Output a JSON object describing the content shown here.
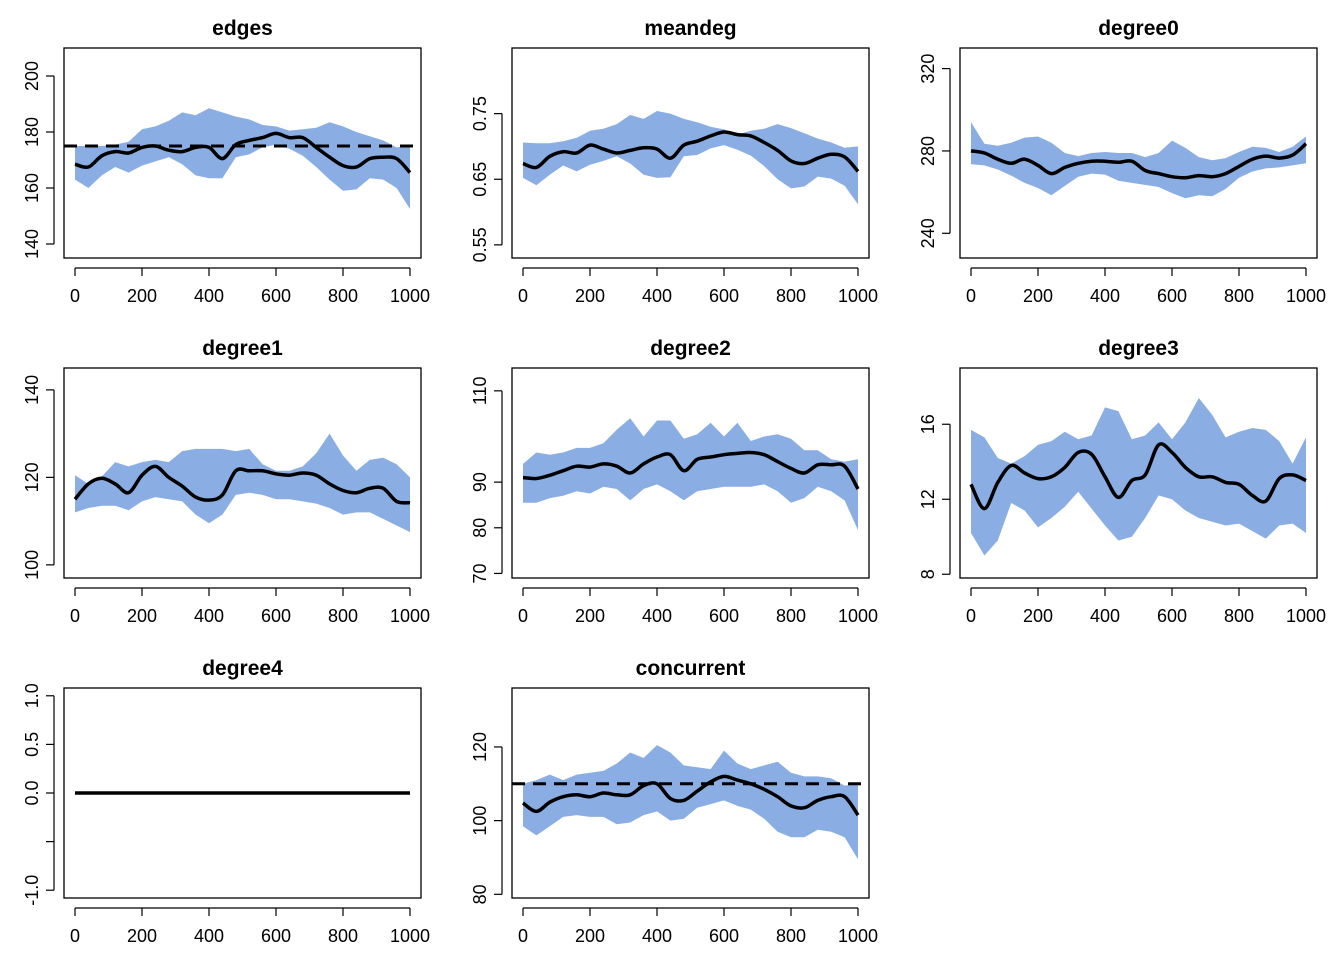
{
  "colors": {
    "band": "#8AAEE3",
    "line": "#000000",
    "frame": "#000000",
    "background": "#FFFFFF"
  },
  "chart_data": [
    {
      "type": "area",
      "title": "edges",
      "xlabel": "",
      "ylabel": "",
      "xlim": [
        0,
        1000
      ],
      "ylim": [
        135,
        210
      ],
      "xticks": [
        0,
        200,
        400,
        600,
        800,
        1000
      ],
      "yticks": [
        140,
        160,
        180,
        200
      ],
      "target": 175,
      "grid": false,
      "x": [
        0,
        40,
        80,
        120,
        160,
        200,
        240,
        280,
        320,
        360,
        400,
        440,
        480,
        520,
        560,
        600,
        640,
        680,
        720,
        760,
        800,
        840,
        880,
        920,
        960,
        1000
      ],
      "mean": [
        168.5,
        167.5,
        171.5,
        173,
        172.5,
        174.5,
        175,
        173.5,
        173,
        174.5,
        174.5,
        170.5,
        175.5,
        177,
        178,
        179.5,
        178,
        178,
        174.5,
        171,
        168,
        167.5,
        170.5,
        171,
        170.5,
        165.5
      ],
      "upper": [
        175,
        175,
        175,
        175.5,
        176.5,
        181,
        182,
        184,
        187,
        186,
        188.5,
        187,
        185.5,
        184.5,
        182.5,
        182,
        180.5,
        181,
        181.5,
        183.5,
        182,
        180,
        178.5,
        177,
        174.5,
        175
      ],
      "lower": [
        163,
        160,
        164.5,
        167.5,
        165.5,
        168,
        169.5,
        171,
        168.5,
        164.5,
        163.5,
        163.5,
        171,
        172,
        174.5,
        175.5,
        174,
        171.5,
        167.5,
        163,
        159,
        159.5,
        163.5,
        163,
        160,
        152.5
      ]
    },
    {
      "type": "area",
      "title": "meandeg",
      "xlabel": "",
      "ylabel": "",
      "xlim": [
        0,
        1000
      ],
      "ylim": [
        0.53,
        0.85
      ],
      "xticks": [
        0,
        200,
        400,
        600,
        800,
        1000
      ],
      "yticks": [
        0.55,
        0.65,
        0.75
      ],
      "ytick_labels": [
        "0.55",
        "0.65",
        "0.75"
      ],
      "grid": false,
      "x": [
        0,
        40,
        80,
        120,
        160,
        200,
        240,
        280,
        320,
        360,
        400,
        440,
        480,
        520,
        560,
        600,
        640,
        680,
        720,
        760,
        800,
        840,
        880,
        920,
        960,
        1000
      ],
      "mean": [
        0.674,
        0.668,
        0.685,
        0.692,
        0.69,
        0.702,
        0.696,
        0.69,
        0.694,
        0.698,
        0.696,
        0.682,
        0.702,
        0.708,
        0.716,
        0.722,
        0.718,
        0.716,
        0.706,
        0.694,
        0.678,
        0.674,
        0.682,
        0.688,
        0.684,
        0.662
      ],
      "upper": [
        0.706,
        0.705,
        0.705,
        0.708,
        0.713,
        0.724,
        0.727,
        0.734,
        0.748,
        0.742,
        0.754,
        0.75,
        0.742,
        0.737,
        0.73,
        0.726,
        0.718,
        0.724,
        0.727,
        0.734,
        0.728,
        0.72,
        0.712,
        0.706,
        0.698,
        0.7
      ],
      "lower": [
        0.652,
        0.641,
        0.657,
        0.671,
        0.662,
        0.672,
        0.678,
        0.685,
        0.674,
        0.657,
        0.652,
        0.653,
        0.685,
        0.687,
        0.697,
        0.702,
        0.695,
        0.686,
        0.67,
        0.65,
        0.636,
        0.639,
        0.654,
        0.651,
        0.64,
        0.612
      ]
    },
    {
      "type": "area",
      "title": "degree0",
      "xlabel": "",
      "ylabel": "",
      "xlim": [
        0,
        1000
      ],
      "ylim": [
        228,
        330
      ],
      "xticks": [
        0,
        200,
        400,
        600,
        800,
        1000
      ],
      "yticks": [
        240,
        280,
        320
      ],
      "grid": false,
      "x": [
        0,
        40,
        80,
        120,
        160,
        200,
        240,
        280,
        320,
        360,
        400,
        440,
        480,
        520,
        560,
        600,
        640,
        680,
        720,
        760,
        800,
        840,
        880,
        920,
        960,
        1000
      ],
      "mean": [
        280,
        279,
        276,
        274,
        276,
        273,
        269,
        272,
        274,
        275,
        275,
        274.5,
        275,
        270.5,
        269,
        267.5,
        267,
        268,
        267.5,
        269,
        272.5,
        276,
        277.5,
        276.5,
        278,
        283.5
      ],
      "upper": [
        294,
        283.5,
        282.5,
        284,
        286.5,
        287,
        284,
        279,
        277.5,
        279,
        279.5,
        279,
        279,
        277,
        279,
        285,
        281.5,
        277,
        275.5,
        276.5,
        279.5,
        282,
        281.5,
        279.5,
        282,
        287
      ],
      "lower": [
        273.5,
        273,
        271,
        268,
        264.5,
        262,
        258.5,
        263,
        267.5,
        269,
        268.5,
        265.5,
        264.5,
        263.5,
        262.5,
        259.5,
        257,
        258.5,
        258,
        261.5,
        267,
        270,
        271.5,
        272,
        273,
        274
      ]
    },
    {
      "type": "area",
      "title": "degree1",
      "xlabel": "",
      "ylabel": "",
      "xlim": [
        0,
        1000
      ],
      "ylim": [
        97,
        145
      ],
      "xticks": [
        0,
        200,
        400,
        600,
        800,
        1000
      ],
      "yticks": [
        100,
        120,
        140
      ],
      "grid": false,
      "x": [
        0,
        40,
        80,
        120,
        160,
        200,
        240,
        280,
        320,
        360,
        400,
        440,
        480,
        520,
        560,
        600,
        640,
        680,
        720,
        760,
        800,
        840,
        880,
        920,
        960,
        1000
      ],
      "mean": [
        115,
        118.5,
        119.8,
        118.5,
        116.5,
        120.5,
        122.5,
        120,
        118,
        115.5,
        114.8,
        116,
        121.5,
        121.5,
        121.5,
        120.8,
        120.5,
        121,
        120.5,
        118.5,
        117,
        116.5,
        117.5,
        117.5,
        114.5,
        114.2
      ],
      "upper": [
        120.5,
        118.5,
        120.2,
        123.5,
        122.5,
        123.5,
        124,
        123.5,
        126,
        126.5,
        126.5,
        126.5,
        126,
        126.5,
        123,
        121.5,
        121.5,
        122.5,
        125.5,
        130,
        125,
        121.5,
        124,
        124.5,
        123,
        120
      ],
      "lower": [
        112,
        113,
        113.5,
        113.5,
        112.5,
        114.5,
        115.5,
        115,
        114.5,
        111.5,
        109.5,
        111.5,
        116,
        116.5,
        116,
        115,
        115,
        114.5,
        114,
        113,
        111.5,
        112,
        112,
        110.5,
        109,
        107.5
      ]
    },
    {
      "type": "area",
      "title": "degree2",
      "xlabel": "",
      "ylabel": "",
      "xlim": [
        0,
        1000
      ],
      "ylim": [
        69,
        115
      ],
      "xticks": [
        0,
        200,
        400,
        600,
        800,
        1000
      ],
      "yticks": [
        70,
        80,
        90,
        110
      ],
      "grid": false,
      "x": [
        0,
        40,
        80,
        120,
        160,
        200,
        240,
        280,
        320,
        360,
        400,
        440,
        480,
        520,
        560,
        600,
        640,
        680,
        720,
        760,
        800,
        840,
        880,
        920,
        960,
        1000
      ],
      "mean": [
        91,
        90.8,
        91.5,
        92.5,
        93.5,
        93.3,
        94,
        93.5,
        92,
        94,
        95.5,
        96,
        92.5,
        95,
        95.5,
        96,
        96.3,
        96.5,
        96,
        94.5,
        93,
        92,
        93.8,
        93.8,
        93.5,
        88.5
      ],
      "upper": [
        94,
        96.5,
        96,
        96.5,
        97.5,
        97.5,
        98.5,
        101.5,
        104,
        100,
        103.5,
        103.5,
        99.5,
        100.5,
        103,
        100,
        103,
        99,
        100,
        100.5,
        99.5,
        97,
        97,
        95,
        94.5,
        95
      ],
      "lower": [
        85.5,
        85.5,
        86.5,
        87,
        88,
        87.5,
        89,
        88.5,
        86,
        88.5,
        89.5,
        88,
        86,
        88,
        88.5,
        89,
        89,
        89,
        89.5,
        88,
        85.5,
        86.5,
        89,
        88,
        86,
        79.5
      ]
    },
    {
      "type": "area",
      "title": "degree3",
      "xlabel": "",
      "ylabel": "",
      "xlim": [
        0,
        1000
      ],
      "ylim": [
        7.8,
        19
      ],
      "xticks": [
        0,
        200,
        400,
        600,
        800,
        1000
      ],
      "yticks": [
        8,
        12,
        16
      ],
      "grid": false,
      "x": [
        0,
        40,
        80,
        120,
        160,
        200,
        240,
        280,
        320,
        360,
        400,
        440,
        480,
        520,
        560,
        600,
        640,
        680,
        720,
        760,
        800,
        840,
        880,
        920,
        960,
        1000
      ],
      "mean": [
        12.8,
        11.5,
        12.9,
        13.8,
        13.4,
        13.1,
        13.2,
        13.7,
        14.5,
        14.4,
        13.2,
        12.1,
        13,
        13.3,
        14.9,
        14.5,
        13.7,
        13.2,
        13.2,
        12.9,
        12.8,
        12.2,
        11.9,
        13.1,
        13.3,
        13
      ],
      "upper": [
        15.7,
        15.3,
        14.2,
        13.9,
        14.3,
        14.9,
        15.1,
        15.6,
        15.2,
        15.4,
        16.9,
        16.7,
        15.2,
        15.4,
        16.1,
        15.2,
        16.1,
        17.4,
        16.5,
        15.3,
        15.6,
        15.8,
        15.7,
        15.1,
        13.9,
        15.3
      ],
      "lower": [
        10.2,
        9,
        9.8,
        11.8,
        11.4,
        10.5,
        11,
        11.6,
        12.4,
        11.5,
        10.6,
        9.8,
        10,
        11,
        12.2,
        12,
        11.4,
        11,
        10.8,
        10.6,
        10.7,
        10.3,
        9.9,
        10.6,
        10.7,
        10.2
      ]
    },
    {
      "type": "line",
      "title": "degree4",
      "xlabel": "",
      "ylabel": "",
      "xlim": [
        0,
        1000
      ],
      "ylim": [
        -1.08,
        1.08
      ],
      "xticks": [
        0,
        200,
        400,
        600,
        800,
        1000
      ],
      "yticks": [
        -1,
        -0.5,
        0,
        0.5,
        1
      ],
      "ytick_labels": [
        "-1.0",
        "",
        "0.0",
        "0.5",
        "1.0"
      ],
      "grid": false,
      "x": [
        0,
        1000
      ],
      "mean": [
        0,
        0
      ]
    },
    {
      "type": "area",
      "title": "concurrent",
      "xlabel": "",
      "ylabel": "",
      "xlim": [
        0,
        1000
      ],
      "ylim": [
        79,
        136
      ],
      "xticks": [
        0,
        200,
        400,
        600,
        800,
        1000
      ],
      "yticks": [
        80,
        100,
        120
      ],
      "target": 110,
      "grid": false,
      "x": [
        0,
        40,
        80,
        120,
        160,
        200,
        240,
        280,
        320,
        360,
        400,
        440,
        480,
        520,
        560,
        600,
        640,
        680,
        720,
        760,
        800,
        840,
        880,
        920,
        960,
        1000
      ],
      "mean": [
        104.8,
        102.5,
        105,
        106.5,
        107,
        106.5,
        107.5,
        107,
        107,
        109.5,
        110,
        106,
        105.5,
        108,
        110.5,
        112,
        111,
        110,
        108.5,
        106.5,
        104,
        103.5,
        105.5,
        106.5,
        106.5,
        101.5
      ],
      "upper": [
        110,
        111,
        112.5,
        111,
        112.5,
        113,
        113.5,
        115.5,
        118.5,
        117,
        120.5,
        118.5,
        115,
        114.5,
        114,
        119,
        115.5,
        114,
        115,
        116,
        113,
        112,
        112,
        111.5,
        109.5,
        110
      ],
      "lower": [
        98.5,
        96,
        98.5,
        101,
        101.5,
        101,
        101,
        99,
        99.5,
        101.5,
        102.5,
        100,
        100.5,
        103.5,
        104.5,
        105.5,
        104,
        103,
        100.5,
        97,
        95.5,
        95.5,
        97.5,
        97,
        95.5,
        89.5
      ]
    }
  ]
}
